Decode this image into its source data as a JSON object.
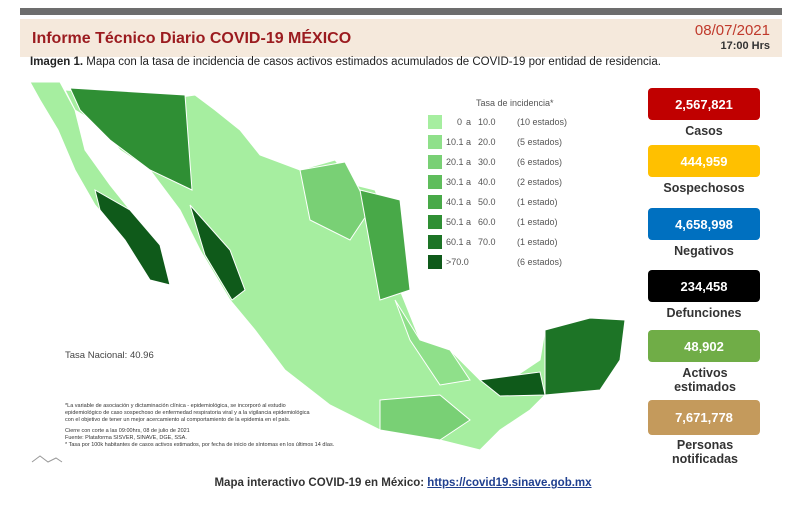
{
  "header": {
    "title": "Informe Técnico Diario COVID-19 MÉXICO",
    "date": "08/07/2021",
    "time": "17:00 Hrs"
  },
  "caption": {
    "label": "Imagen 1.",
    "text": "Mapa con la tasa de incidencia de casos activos estimados acumulados de COVID-19 por entidad de residencia."
  },
  "legend": {
    "title": "Tasa de incidencia*",
    "items": [
      {
        "from": "0",
        "sep": "a",
        "to": "10.0",
        "count": "(10 estados)",
        "color": "#a6eea0"
      },
      {
        "from": "10.1",
        "sep": "a",
        "to": "20.0",
        "count": "(5 estados)",
        "color": "#8fe08a"
      },
      {
        "from": "20.1",
        "sep": "a",
        "to": "30.0",
        "count": "(6 estados)",
        "color": "#79d075"
      },
      {
        "from": "30.1",
        "sep": "a",
        "to": "40.0",
        "count": "(2 estados)",
        "color": "#5fbd5c"
      },
      {
        "from": "40.1",
        "sep": "a",
        "to": "50.0",
        "count": "(1 estado)",
        "color": "#48a948"
      },
      {
        "from": "50.1",
        "sep": "a",
        "to": "60.0",
        "count": "(1 estado)",
        "color": "#2f8f34"
      },
      {
        "from": "60.1",
        "sep": "a",
        "to": "70.0",
        "count": "(1 estado)",
        "color": "#1d7426"
      },
      {
        "from": ">70.0",
        "count": "(6 estados)",
        "color": "#0f5a1a"
      }
    ]
  },
  "national_rate": "Tasa Nacional: 40.96",
  "notes": [
    "*La variable de asociación y dictaminación clínica - epidemiológica, se incorporó al estudio",
    "epidemiológico de caso sospechoso de enfermedad respiratoria viral y a la vigilancia epidemiológica",
    "con el objetivo de tener un mejor acercamiento al comportamiento de la epidemia en el país.",
    "Cierre con corte a las 09:00hrs, 08 de julio de 2021",
    "Fuente: Plataforma SISVER, SINAVE, DGE, SSA.",
    "* Tasa por 100k habitantes de casos activos estimados, por fecha de inicio de síntomas en los últimos 14 días."
  ],
  "stats": [
    {
      "value": "2,567,821",
      "label": "Casos",
      "color": "#c00000"
    },
    {
      "value": "444,959",
      "label": "Sospechosos",
      "color": "#ffc000"
    },
    {
      "value": "4,658,998",
      "label": "Negativos",
      "color": "#0070c0"
    },
    {
      "value": "234,458",
      "label": "Defunciones",
      "color": "#000000"
    },
    {
      "value": "48,902",
      "label": "Activos estimados",
      "color": "#70ad47"
    },
    {
      "value": "7,671,778",
      "label": "Personas notificadas",
      "color": "#c49a5c"
    }
  ],
  "footer": {
    "label": "Mapa interactivo COVID-19 en México:",
    "link": "https://covid19.sinave.gob.mx"
  }
}
